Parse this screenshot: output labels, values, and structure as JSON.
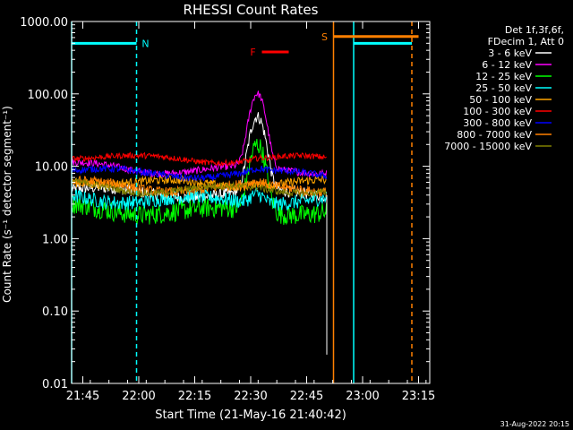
{
  "chart_data": {
    "type": "line",
    "title": "RHESSI Count Rates",
    "xlabel": "Start Time (21-May-16 21:40:42)",
    "ylabel": "Count Rate (s⁻¹ detector segment⁻¹)",
    "y_scale": "log",
    "ylim": [
      0.01,
      1000
    ],
    "xlim_minutes": [
      21.7,
      23.3
    ],
    "x_ticks": [
      {
        "v": 21.75,
        "label": "21:45"
      },
      {
        "v": 22.0,
        "label": "22:00"
      },
      {
        "v": 22.25,
        "label": "22:15"
      },
      {
        "v": 22.5,
        "label": "22:30"
      },
      {
        "v": 22.75,
        "label": "22:45"
      },
      {
        "v": 23.0,
        "label": "23:00"
      },
      {
        "v": 23.25,
        "label": "23:15"
      }
    ],
    "y_ticks": [
      {
        "v": 0.01,
        "label": "0.01"
      },
      {
        "v": 0.1,
        "label": "0.10"
      },
      {
        "v": 1,
        "label": "1.00"
      },
      {
        "v": 10,
        "label": "10.00"
      },
      {
        "v": 100,
        "label": "100.00"
      },
      {
        "v": 1000,
        "label": "1000.00"
      }
    ],
    "legend_header": [
      "Det 1f,3f,6f,",
      "FDecim 1, Att 0"
    ],
    "series": [
      {
        "name": "3 - 6 keV",
        "color": "#ffffff",
        "base": 4.2,
        "noise": 0.08,
        "peak": 48
      },
      {
        "name": "6 - 12 keV",
        "color": "#ff00ff",
        "base": 9.0,
        "noise": 0.05,
        "peak": 100
      },
      {
        "name": "12 - 25 keV",
        "color": "#00ff00",
        "base": 2.4,
        "noise": 0.14,
        "peak": 20
      },
      {
        "name": "25 - 50 keV",
        "color": "#00ffff",
        "base": 3.4,
        "noise": 0.1,
        "peak": 4.5
      },
      {
        "name": "50 - 100 keV",
        "color": "#ffa500",
        "base": 5.8,
        "noise": 0.06,
        "peak": 6.5
      },
      {
        "name": "100 - 300 keV",
        "color": "#ff0000",
        "base": 12.5,
        "noise": 0.04,
        "peak": 13
      },
      {
        "name": "300 - 800 keV",
        "color": "#0000ff",
        "base": 7.8,
        "noise": 0.05,
        "peak": 8.5
      },
      {
        "name": "800 - 7000 keV",
        "color": "#ff8000",
        "base": 5.0,
        "noise": 0.07,
        "peak": 5.5
      },
      {
        "name": "7000 - 15000 keV",
        "color": "#808000",
        "base": 4.8,
        "noise": 0.05,
        "peak": 5.0
      }
    ],
    "annotations": [
      {
        "label": "N",
        "color": "#00ffff",
        "x1": 21.7,
        "x2": 21.99,
        "y": 500
      },
      {
        "label": "F",
        "color": "#ff0000",
        "x1": 22.55,
        "x2": 22.67,
        "y": 380
      },
      {
        "label": "S",
        "color": "#ff8000",
        "x1": 22.87,
        "x2": 23.25,
        "y": 620
      },
      {
        "label": "",
        "color": "#00ffff",
        "x1": 22.96,
        "x2": 23.22,
        "y": 500
      }
    ],
    "vertical_lines": [
      {
        "x": 21.7,
        "color": "#00ffff",
        "dashed": false
      },
      {
        "x": 21.99,
        "color": "#00ffff",
        "dashed": true
      },
      {
        "x": 22.87,
        "color": "#ff8000",
        "dashed": false
      },
      {
        "x": 22.96,
        "color": "#00ffff",
        "dashed": false
      },
      {
        "x": 23.22,
        "color": "#ff8000",
        "dashed": true
      }
    ],
    "data_end": 22.84
  },
  "footer": {
    "timestamp": "31-Aug-2022 20:15"
  }
}
